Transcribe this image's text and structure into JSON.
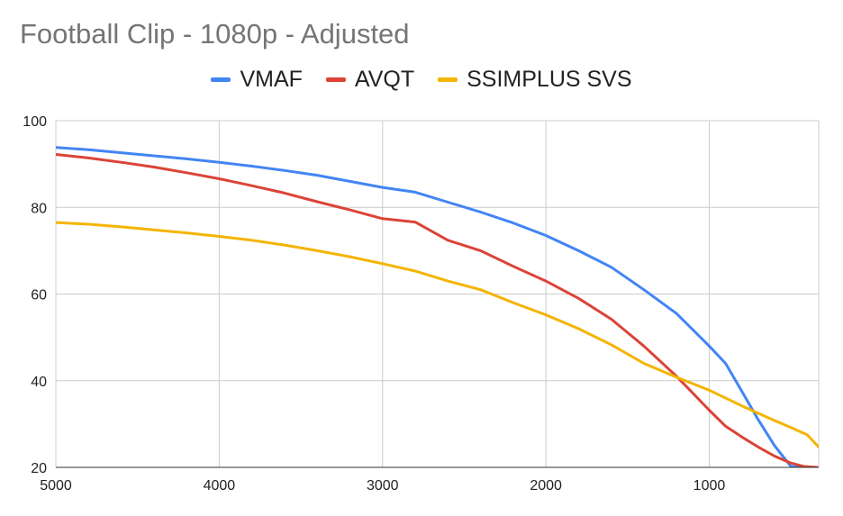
{
  "chart_data": {
    "type": "line",
    "title": "Football Clip - 1080p - Adjusted",
    "xlabel": "",
    "ylabel": "",
    "x_reversed": true,
    "xlim": [
      5000,
      330
    ],
    "ylim": [
      20,
      100
    ],
    "x_ticks": [
      5000,
      4000,
      3000,
      2000,
      1000
    ],
    "y_ticks": [
      20,
      40,
      60,
      80,
      100
    ],
    "grid": true,
    "legend_position": "top",
    "series": [
      {
        "name": "VMAF",
        "color": "#4285F4",
        "points": [
          [
            5000,
            93.8
          ],
          [
            4800,
            93.3
          ],
          [
            4600,
            92.6
          ],
          [
            4400,
            91.9
          ],
          [
            4200,
            91.2
          ],
          [
            4000,
            90.4
          ],
          [
            3800,
            89.5
          ],
          [
            3600,
            88.5
          ],
          [
            3400,
            87.4
          ],
          [
            3200,
            86.0
          ],
          [
            3000,
            84.6
          ],
          [
            2800,
            83.5
          ],
          [
            2600,
            81.2
          ],
          [
            2400,
            78.9
          ],
          [
            2200,
            76.4
          ],
          [
            2000,
            73.5
          ],
          [
            1800,
            70.0
          ],
          [
            1600,
            66.2
          ],
          [
            1400,
            61.0
          ],
          [
            1200,
            55.5
          ],
          [
            1000,
            48.0
          ],
          [
            900,
            44.0
          ],
          [
            800,
            37.5
          ],
          [
            700,
            31.0
          ],
          [
            600,
            25.0
          ],
          [
            500,
            20.2
          ],
          [
            400,
            19.5
          ]
        ]
      },
      {
        "name": "AVQT",
        "color": "#DB4437",
        "points": [
          [
            5000,
            92.2
          ],
          [
            4800,
            91.4
          ],
          [
            4600,
            90.4
          ],
          [
            4400,
            89.3
          ],
          [
            4200,
            88.0
          ],
          [
            4000,
            86.6
          ],
          [
            3800,
            85.0
          ],
          [
            3600,
            83.3
          ],
          [
            3400,
            81.3
          ],
          [
            3200,
            79.4
          ],
          [
            3000,
            77.4
          ],
          [
            2800,
            76.6
          ],
          [
            2600,
            72.4
          ],
          [
            2400,
            70.0
          ],
          [
            2200,
            66.4
          ],
          [
            2000,
            63.0
          ],
          [
            1800,
            59.0
          ],
          [
            1600,
            54.2
          ],
          [
            1400,
            48.0
          ],
          [
            1200,
            41.0
          ],
          [
            1000,
            33.2
          ],
          [
            900,
            29.5
          ],
          [
            800,
            27.0
          ],
          [
            700,
            24.7
          ],
          [
            600,
            22.6
          ],
          [
            500,
            21.0
          ],
          [
            420,
            20.2
          ],
          [
            340,
            20.0
          ]
        ]
      },
      {
        "name": "SSIMPLUS SVS",
        "color": "#F4B400",
        "points": [
          [
            5000,
            76.5
          ],
          [
            4800,
            76.1
          ],
          [
            4600,
            75.5
          ],
          [
            4400,
            74.8
          ],
          [
            4200,
            74.1
          ],
          [
            4000,
            73.3
          ],
          [
            3800,
            72.4
          ],
          [
            3600,
            71.3
          ],
          [
            3400,
            70.0
          ],
          [
            3200,
            68.6
          ],
          [
            3000,
            67.0
          ],
          [
            2800,
            65.3
          ],
          [
            2600,
            63.0
          ],
          [
            2400,
            61.0
          ],
          [
            2200,
            58.0
          ],
          [
            2000,
            55.2
          ],
          [
            1800,
            52.0
          ],
          [
            1600,
            48.3
          ],
          [
            1400,
            44.0
          ],
          [
            1200,
            40.8
          ],
          [
            1000,
            37.8
          ],
          [
            800,
            34.2
          ],
          [
            600,
            30.8
          ],
          [
            500,
            29.2
          ],
          [
            400,
            27.5
          ],
          [
            330,
            24.7
          ]
        ]
      }
    ]
  }
}
